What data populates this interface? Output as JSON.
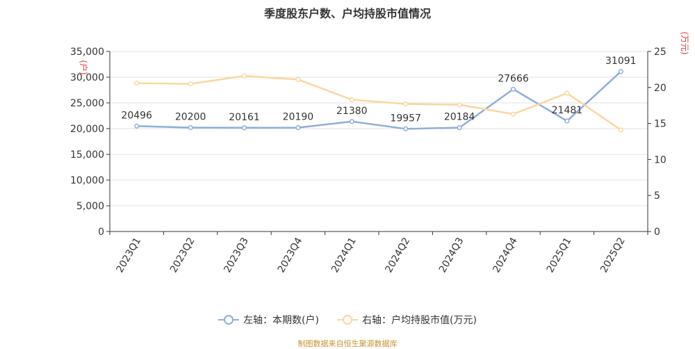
{
  "chart_data": {
    "type": "line",
    "title": "季度股东户数、户均持股市值情况",
    "left_axis_label": "(户)",
    "right_axis_label": "(万元)",
    "categories": [
      "2023Q1",
      "2023Q2",
      "2023Q3",
      "2023Q4",
      "2024Q1",
      "2024Q2",
      "2024Q3",
      "2024Q4",
      "2025Q1",
      "2025Q2"
    ],
    "left_axis": {
      "ylim": [
        0,
        35000
      ],
      "ticks": [
        "0",
        "5,000",
        "10,000",
        "15,000",
        "20,000",
        "25,000",
        "30,000",
        "35,000"
      ]
    },
    "right_axis": {
      "ylim": [
        0,
        25
      ],
      "ticks": [
        "0",
        "5",
        "10",
        "15",
        "20",
        "25"
      ]
    },
    "grid": true,
    "legend_position": "bottom",
    "series": [
      {
        "name": "左轴：本期数(户)",
        "axis": "left",
        "color": "#8eaedb",
        "values": [
          20496,
          20200,
          20161,
          20190,
          21380,
          19957,
          20184,
          27666,
          21481,
          31091
        ],
        "labels": [
          "20496",
          "20200",
          "20161",
          "20190",
          "21380",
          "19957",
          "20184",
          "27666",
          "21481",
          "31091"
        ]
      },
      {
        "name": "右轴：户均持股市值(万元)",
        "axis": "right",
        "color": "#fad7a0",
        "values": [
          20.6,
          20.5,
          21.6,
          21.1,
          18.3,
          17.7,
          17.6,
          16.3,
          19.2,
          14.1
        ]
      }
    ]
  },
  "footer": {
    "source": "制图数据来自恒生聚源数据库"
  },
  "colors": {
    "axis_label": "#e03c3c",
    "grid": "#e0e0e0",
    "axis": "#333333",
    "text": "#333333"
  }
}
